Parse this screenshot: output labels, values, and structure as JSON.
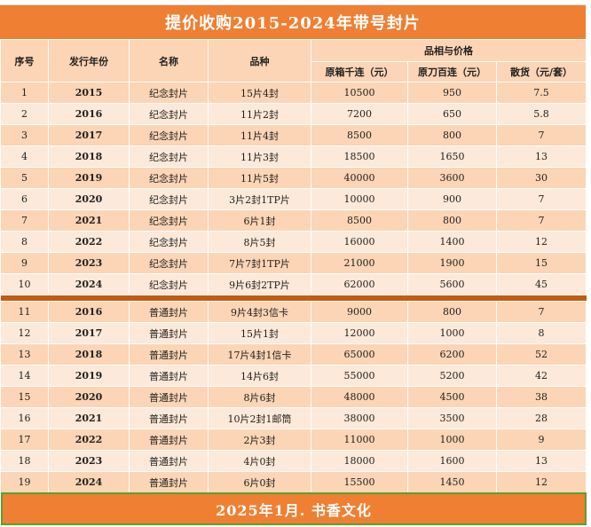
{
  "title": "提价收购2015-2024年带号封片",
  "headers": {
    "seq": "序号",
    "year": "发行年份",
    "name": "名称",
    "variety": "品种",
    "group": "品相与价格",
    "col_box": "原箱千连（元）",
    "col_knife": "原刀百连（元）",
    "col_loose": "散货（元/套）"
  },
  "rows_group1": [
    {
      "seq": "1",
      "year": "2015",
      "name": "纪念封片",
      "variety": "15片4封",
      "box": "10500",
      "knife": "950",
      "loose": "7.5"
    },
    {
      "seq": "2",
      "year": "2016",
      "name": "纪念封片",
      "variety": "11片2封",
      "box": "7200",
      "knife": "650",
      "loose": "5.8"
    },
    {
      "seq": "3",
      "year": "2017",
      "name": "纪念封片",
      "variety": "11片4封",
      "box": "8500",
      "knife": "800",
      "loose": "7"
    },
    {
      "seq": "4",
      "year": "2018",
      "name": "纪念封片",
      "variety": "11片3封",
      "box": "18500",
      "knife": "1650",
      "loose": "13"
    },
    {
      "seq": "5",
      "year": "2019",
      "name": "纪念封片",
      "variety": "11片5封",
      "box": "40000",
      "knife": "3600",
      "loose": "30"
    },
    {
      "seq": "6",
      "year": "2020",
      "name": "纪念封片",
      "variety": "3片2封1TP片",
      "box": "10000",
      "knife": "900",
      "loose": "7"
    },
    {
      "seq": "7",
      "year": "2021",
      "name": "纪念封片",
      "variety": "6片1封",
      "box": "8500",
      "knife": "800",
      "loose": "7"
    },
    {
      "seq": "8",
      "year": "2022",
      "name": "纪念封片",
      "variety": "8片5封",
      "box": "16000",
      "knife": "1400",
      "loose": "12"
    },
    {
      "seq": "9",
      "year": "2023",
      "name": "纪念封片",
      "variety": "7片7封1TP片",
      "box": "21000",
      "knife": "1900",
      "loose": "15"
    },
    {
      "seq": "10",
      "year": "2024",
      "name": "纪念封片",
      "variety": "9片6封2TP片",
      "box": "62000",
      "knife": "5600",
      "loose": "45"
    }
  ],
  "rows_group2": [
    {
      "seq": "11",
      "year": "2016",
      "name": "普通封片",
      "variety": "9片4封3信卡",
      "box": "9000",
      "knife": "800",
      "loose": "7"
    },
    {
      "seq": "12",
      "year": "2017",
      "name": "普通封片",
      "variety": "15片1封",
      "box": "12000",
      "knife": "1000",
      "loose": "8"
    },
    {
      "seq": "13",
      "year": "2018",
      "name": "普通封片",
      "variety": "17片4封1信卡",
      "box": "65000",
      "knife": "6200",
      "loose": "52"
    },
    {
      "seq": "14",
      "year": "2019",
      "name": "普通封片",
      "variety": "14片6封",
      "box": "55000",
      "knife": "5200",
      "loose": "42"
    },
    {
      "seq": "15",
      "year": "2020",
      "name": "普通封片",
      "variety": "8片6封",
      "box": "48000",
      "knife": "4500",
      "loose": "38"
    },
    {
      "seq": "16",
      "year": "2021",
      "name": "普通封片",
      "variety": "10片2封1邮筒",
      "box": "38000",
      "knife": "3500",
      "loose": "28"
    },
    {
      "seq": "17",
      "year": "2022",
      "name": "普通封片",
      "variety": "2片3封",
      "box": "11000",
      "knife": "1000",
      "loose": "9"
    },
    {
      "seq": "18",
      "year": "2023",
      "name": "普通封片",
      "variety": "4片0封",
      "box": "18000",
      "knife": "1600",
      "loose": "13"
    },
    {
      "seq": "19",
      "year": "2024",
      "name": "普通封片",
      "variety": "6片0封",
      "box": "15500",
      "knife": "1450",
      "loose": "12"
    }
  ],
  "footer": "2025年1月. 书香文化",
  "colors": {
    "accent_orange": "#ef7f32",
    "header_fill": "#fbd5b5",
    "row_light": "#fde9d9",
    "separator": "#c55a11",
    "footer_border": "#5aa02c"
  }
}
